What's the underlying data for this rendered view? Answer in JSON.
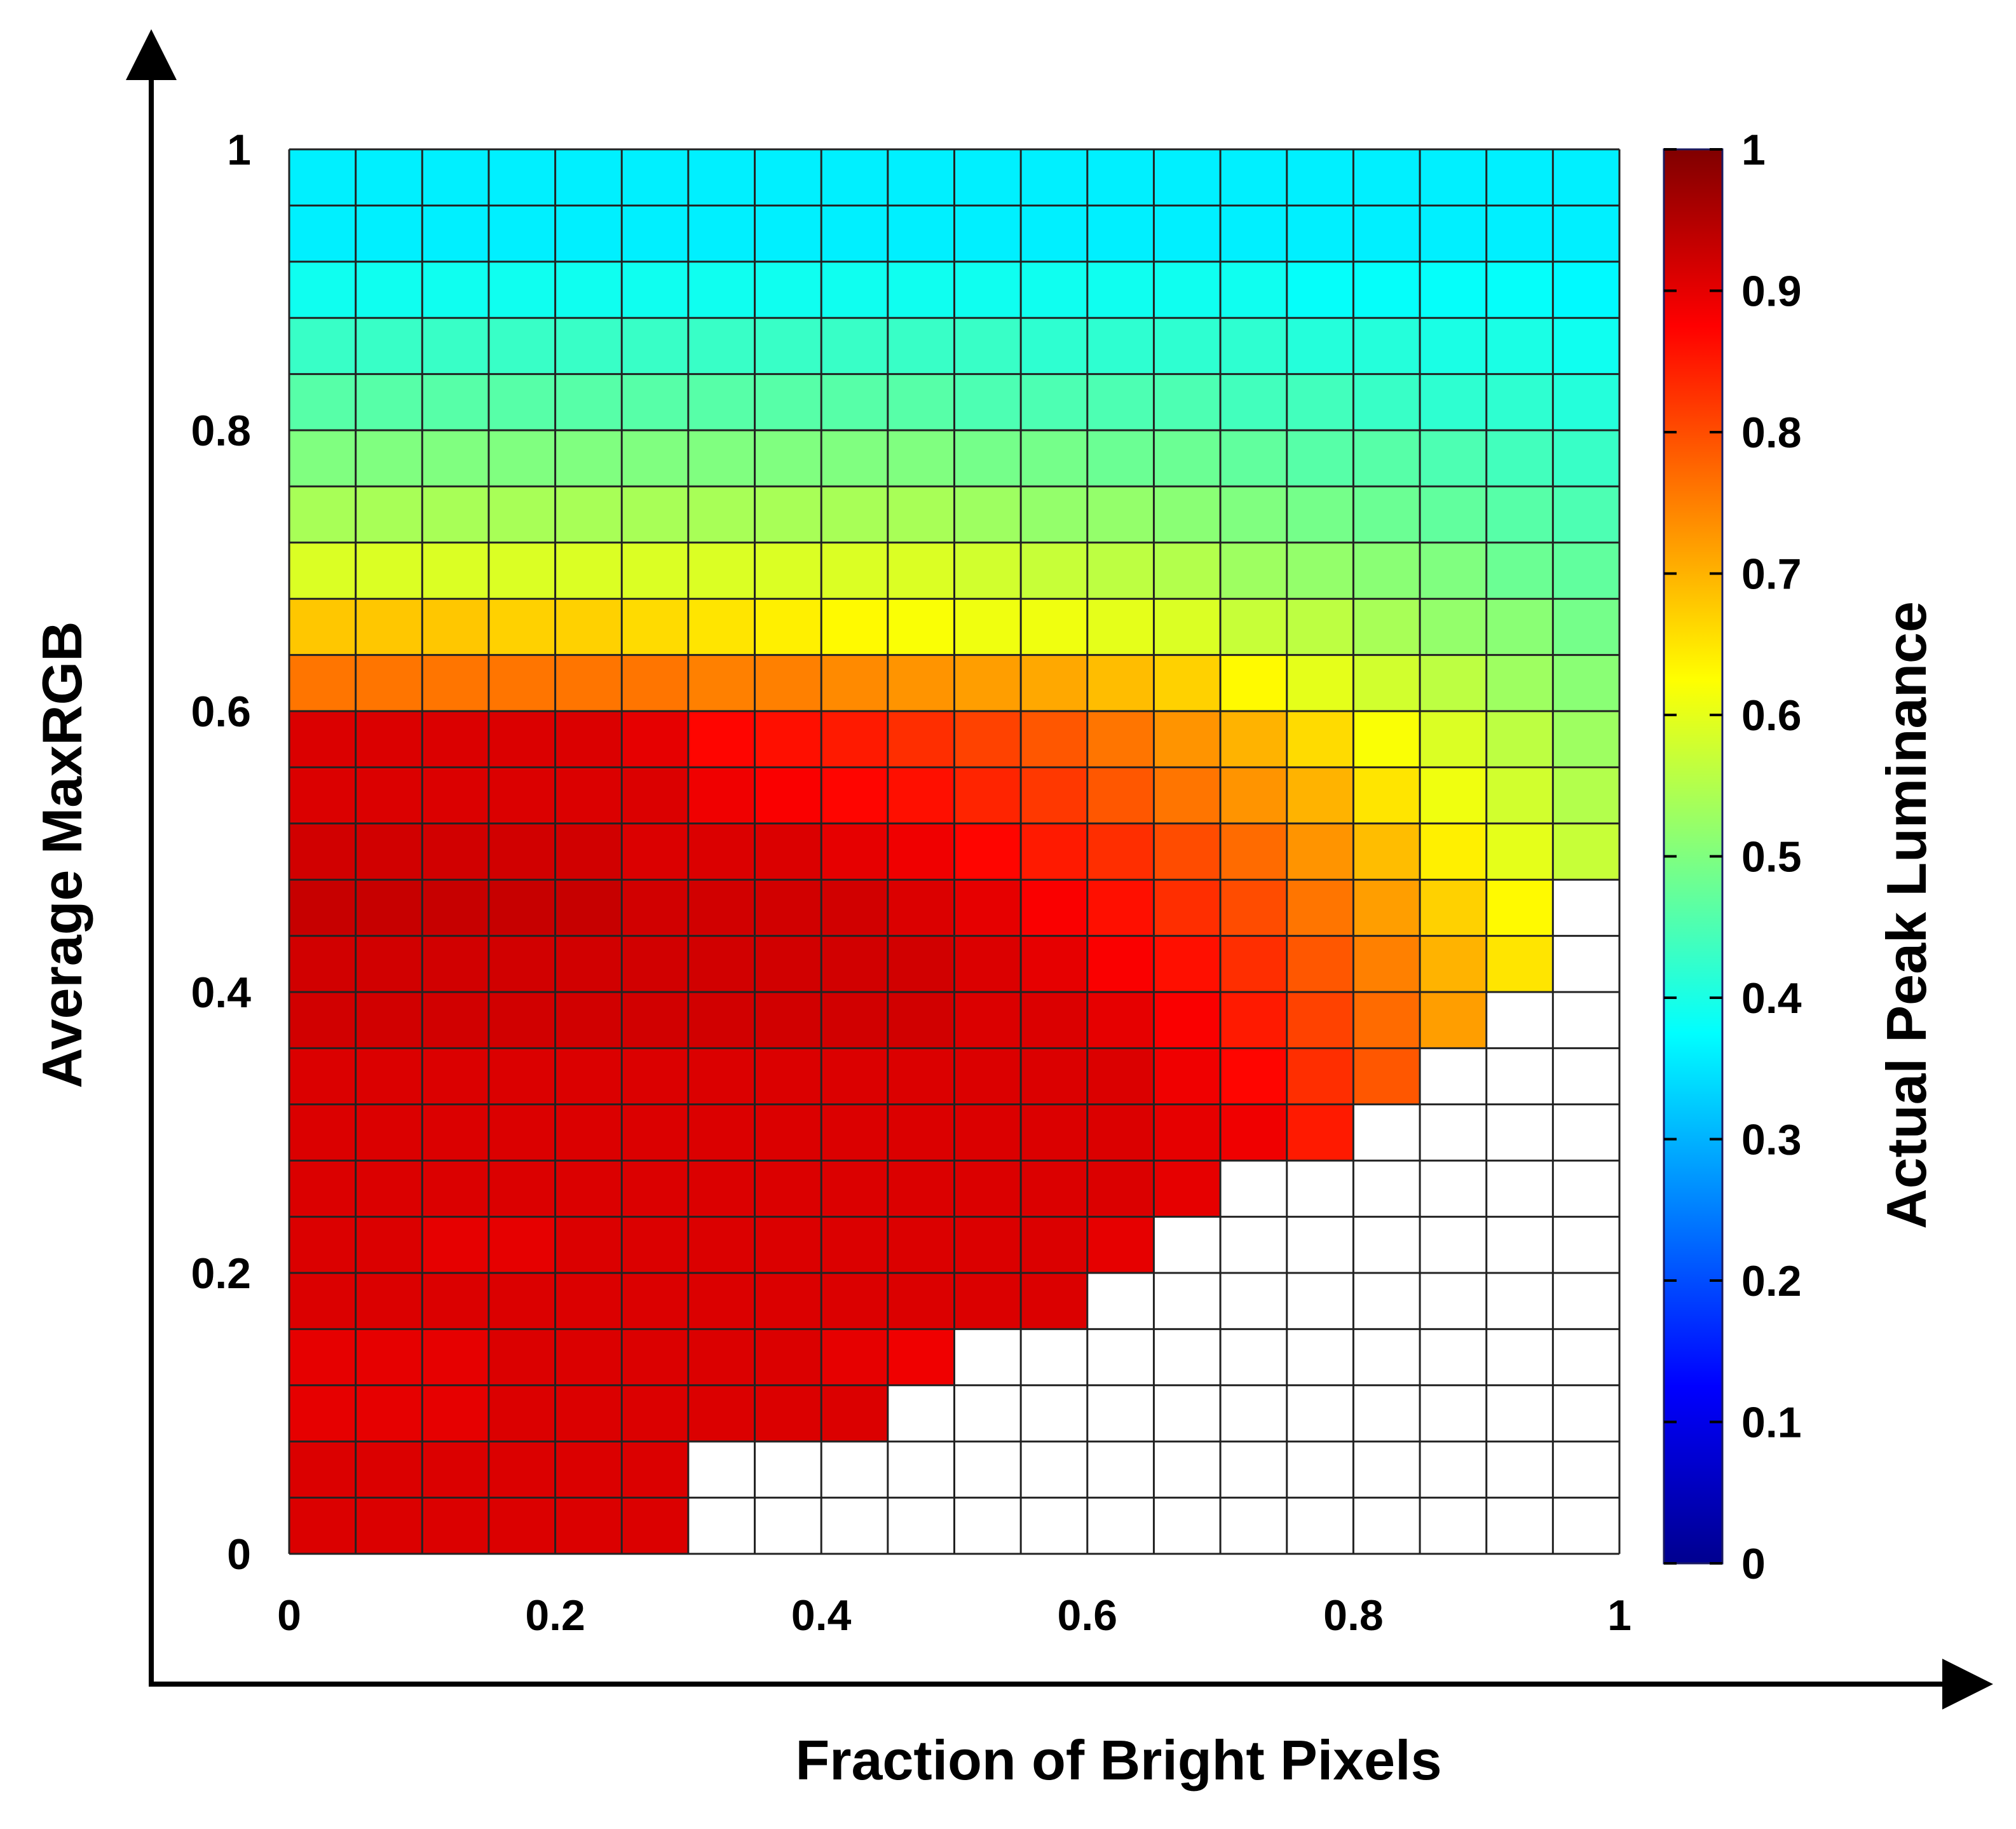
{
  "chart_data": {
    "type": "heatmap",
    "title": "",
    "xlabel": "Fraction of Bright Pixels",
    "ylabel": "Average MaxRGB",
    "colorbar_label": "Actual Peak Luminance",
    "xlim": [
      0,
      1
    ],
    "ylim": [
      0,
      1
    ],
    "clim": [
      0,
      1
    ],
    "colormap": "jet",
    "grid": true,
    "x_ticks": [
      "0",
      "0.2",
      "0.4",
      "0.6",
      "0.8",
      "1"
    ],
    "y_ticks": [
      "0",
      "0.2",
      "0.4",
      "0.6",
      "0.8",
      "1"
    ],
    "colorbar_ticks": [
      "0",
      "0.1",
      "0.2",
      "0.3",
      "0.4",
      "0.5",
      "0.6",
      "0.7",
      "0.8",
      "0.9",
      "1"
    ],
    "x_cells": 20,
    "y_cells": 25,
    "empty_color": "#ffffff",
    "note_values": "rows ordered from top (Average MaxRGB = 1) to bottom (Average MaxRGB = 0); null = no data (white)",
    "values": [
      [
        0.36,
        0.36,
        0.36,
        0.36,
        0.36,
        0.36,
        0.36,
        0.36,
        0.36,
        0.36,
        0.36,
        0.36,
        0.36,
        0.36,
        0.36,
        0.36,
        0.36,
        0.36,
        0.36,
        0.36
      ],
      [
        0.36,
        0.36,
        0.36,
        0.36,
        0.36,
        0.36,
        0.36,
        0.36,
        0.36,
        0.36,
        0.36,
        0.36,
        0.36,
        0.36,
        0.36,
        0.36,
        0.36,
        0.36,
        0.36,
        0.36
      ],
      [
        0.39,
        0.39,
        0.39,
        0.39,
        0.39,
        0.39,
        0.39,
        0.39,
        0.39,
        0.39,
        0.39,
        0.39,
        0.39,
        0.39,
        0.39,
        0.38,
        0.38,
        0.38,
        0.38,
        0.37
      ],
      [
        0.43,
        0.43,
        0.43,
        0.43,
        0.43,
        0.43,
        0.43,
        0.43,
        0.43,
        0.43,
        0.43,
        0.42,
        0.42,
        0.42,
        0.42,
        0.41,
        0.41,
        0.4,
        0.4,
        0.39
      ],
      [
        0.46,
        0.46,
        0.46,
        0.46,
        0.46,
        0.46,
        0.46,
        0.46,
        0.46,
        0.46,
        0.45,
        0.45,
        0.45,
        0.45,
        0.44,
        0.44,
        0.43,
        0.42,
        0.42,
        0.41
      ],
      [
        0.5,
        0.5,
        0.5,
        0.5,
        0.5,
        0.5,
        0.5,
        0.5,
        0.5,
        0.5,
        0.49,
        0.49,
        0.48,
        0.48,
        0.47,
        0.46,
        0.46,
        0.45,
        0.44,
        0.43
      ],
      [
        0.54,
        0.54,
        0.54,
        0.54,
        0.54,
        0.54,
        0.54,
        0.54,
        0.54,
        0.54,
        0.53,
        0.52,
        0.52,
        0.51,
        0.5,
        0.49,
        0.48,
        0.47,
        0.46,
        0.45
      ],
      [
        0.59,
        0.59,
        0.59,
        0.59,
        0.59,
        0.59,
        0.59,
        0.59,
        0.59,
        0.59,
        0.58,
        0.57,
        0.56,
        0.55,
        0.53,
        0.52,
        0.51,
        0.5,
        0.48,
        0.47
      ],
      [
        0.68,
        0.68,
        0.68,
        0.67,
        0.67,
        0.66,
        0.65,
        0.64,
        0.63,
        0.62,
        0.61,
        0.61,
        0.6,
        0.59,
        0.57,
        0.56,
        0.54,
        0.52,
        0.51,
        0.49
      ],
      [
        0.76,
        0.76,
        0.76,
        0.76,
        0.76,
        0.76,
        0.75,
        0.75,
        0.74,
        0.73,
        0.72,
        0.71,
        0.69,
        0.67,
        0.63,
        0.6,
        0.58,
        0.56,
        0.53,
        0.51
      ],
      [
        0.91,
        0.91,
        0.91,
        0.91,
        0.91,
        0.9,
        0.87,
        0.86,
        0.85,
        0.83,
        0.81,
        0.79,
        0.76,
        0.73,
        0.7,
        0.66,
        0.62,
        0.59,
        0.56,
        0.53
      ],
      [
        0.91,
        0.91,
        0.91,
        0.91,
        0.91,
        0.91,
        0.89,
        0.88,
        0.87,
        0.86,
        0.84,
        0.82,
        0.79,
        0.76,
        0.73,
        0.7,
        0.65,
        0.61,
        0.58,
        0.55
      ],
      [
        0.92,
        0.92,
        0.92,
        0.92,
        0.92,
        0.91,
        0.91,
        0.91,
        0.9,
        0.89,
        0.87,
        0.85,
        0.83,
        0.8,
        0.77,
        0.73,
        0.69,
        0.64,
        0.6,
        0.57
      ],
      [
        0.93,
        0.93,
        0.93,
        0.93,
        0.93,
        0.92,
        0.92,
        0.92,
        0.92,
        0.91,
        0.9,
        0.88,
        0.86,
        0.83,
        0.8,
        0.76,
        0.72,
        0.67,
        0.63,
        null
      ],
      [
        0.92,
        0.92,
        0.92,
        0.92,
        0.92,
        0.92,
        0.92,
        0.92,
        0.92,
        0.92,
        0.91,
        0.9,
        0.88,
        0.86,
        0.83,
        0.79,
        0.75,
        0.7,
        0.65,
        null
      ],
      [
        0.92,
        0.92,
        0.92,
        0.92,
        0.92,
        0.92,
        0.92,
        0.92,
        0.92,
        0.92,
        0.91,
        0.91,
        0.9,
        0.88,
        0.85,
        0.81,
        0.77,
        0.72,
        null,
        null
      ],
      [
        0.91,
        0.91,
        0.91,
        0.91,
        0.91,
        0.91,
        0.91,
        0.91,
        0.91,
        0.91,
        0.91,
        0.91,
        0.91,
        0.89,
        0.87,
        0.83,
        0.79,
        null,
        null,
        null
      ],
      [
        0.91,
        0.91,
        0.91,
        0.91,
        0.91,
        0.91,
        0.91,
        0.91,
        0.91,
        0.91,
        0.91,
        0.91,
        0.91,
        0.9,
        0.89,
        0.85,
        null,
        null,
        null,
        null
      ],
      [
        0.91,
        0.91,
        0.91,
        0.91,
        0.91,
        0.91,
        0.91,
        0.91,
        0.91,
        0.91,
        0.91,
        0.91,
        0.91,
        0.9,
        null,
        null,
        null,
        null,
        null,
        null
      ],
      [
        0.91,
        0.91,
        0.9,
        0.9,
        0.91,
        0.91,
        0.91,
        0.91,
        0.91,
        0.91,
        0.91,
        0.91,
        0.9,
        null,
        null,
        null,
        null,
        null,
        null,
        null
      ],
      [
        0.91,
        0.91,
        0.91,
        0.91,
        0.91,
        0.91,
        0.91,
        0.91,
        0.91,
        0.91,
        0.91,
        0.91,
        null,
        null,
        null,
        null,
        null,
        null,
        null,
        null
      ],
      [
        0.9,
        0.9,
        0.9,
        0.91,
        0.91,
        0.91,
        0.91,
        0.91,
        0.9,
        0.89,
        null,
        null,
        null,
        null,
        null,
        null,
        null,
        null,
        null,
        null
      ],
      [
        0.9,
        0.9,
        0.9,
        0.91,
        0.91,
        0.91,
        0.91,
        0.91,
        0.91,
        null,
        null,
        null,
        null,
        null,
        null,
        null,
        null,
        null,
        null,
        null
      ],
      [
        0.91,
        0.91,
        0.91,
        0.91,
        0.91,
        0.91,
        null,
        null,
        null,
        null,
        null,
        null,
        null,
        null,
        null,
        null,
        null,
        null,
        null,
        null
      ],
      [
        0.91,
        0.91,
        0.91,
        0.91,
        0.91,
        0.91,
        null,
        null,
        null,
        null,
        null,
        null,
        null,
        null,
        null,
        null,
        null,
        null,
        null,
        null
      ]
    ]
  }
}
